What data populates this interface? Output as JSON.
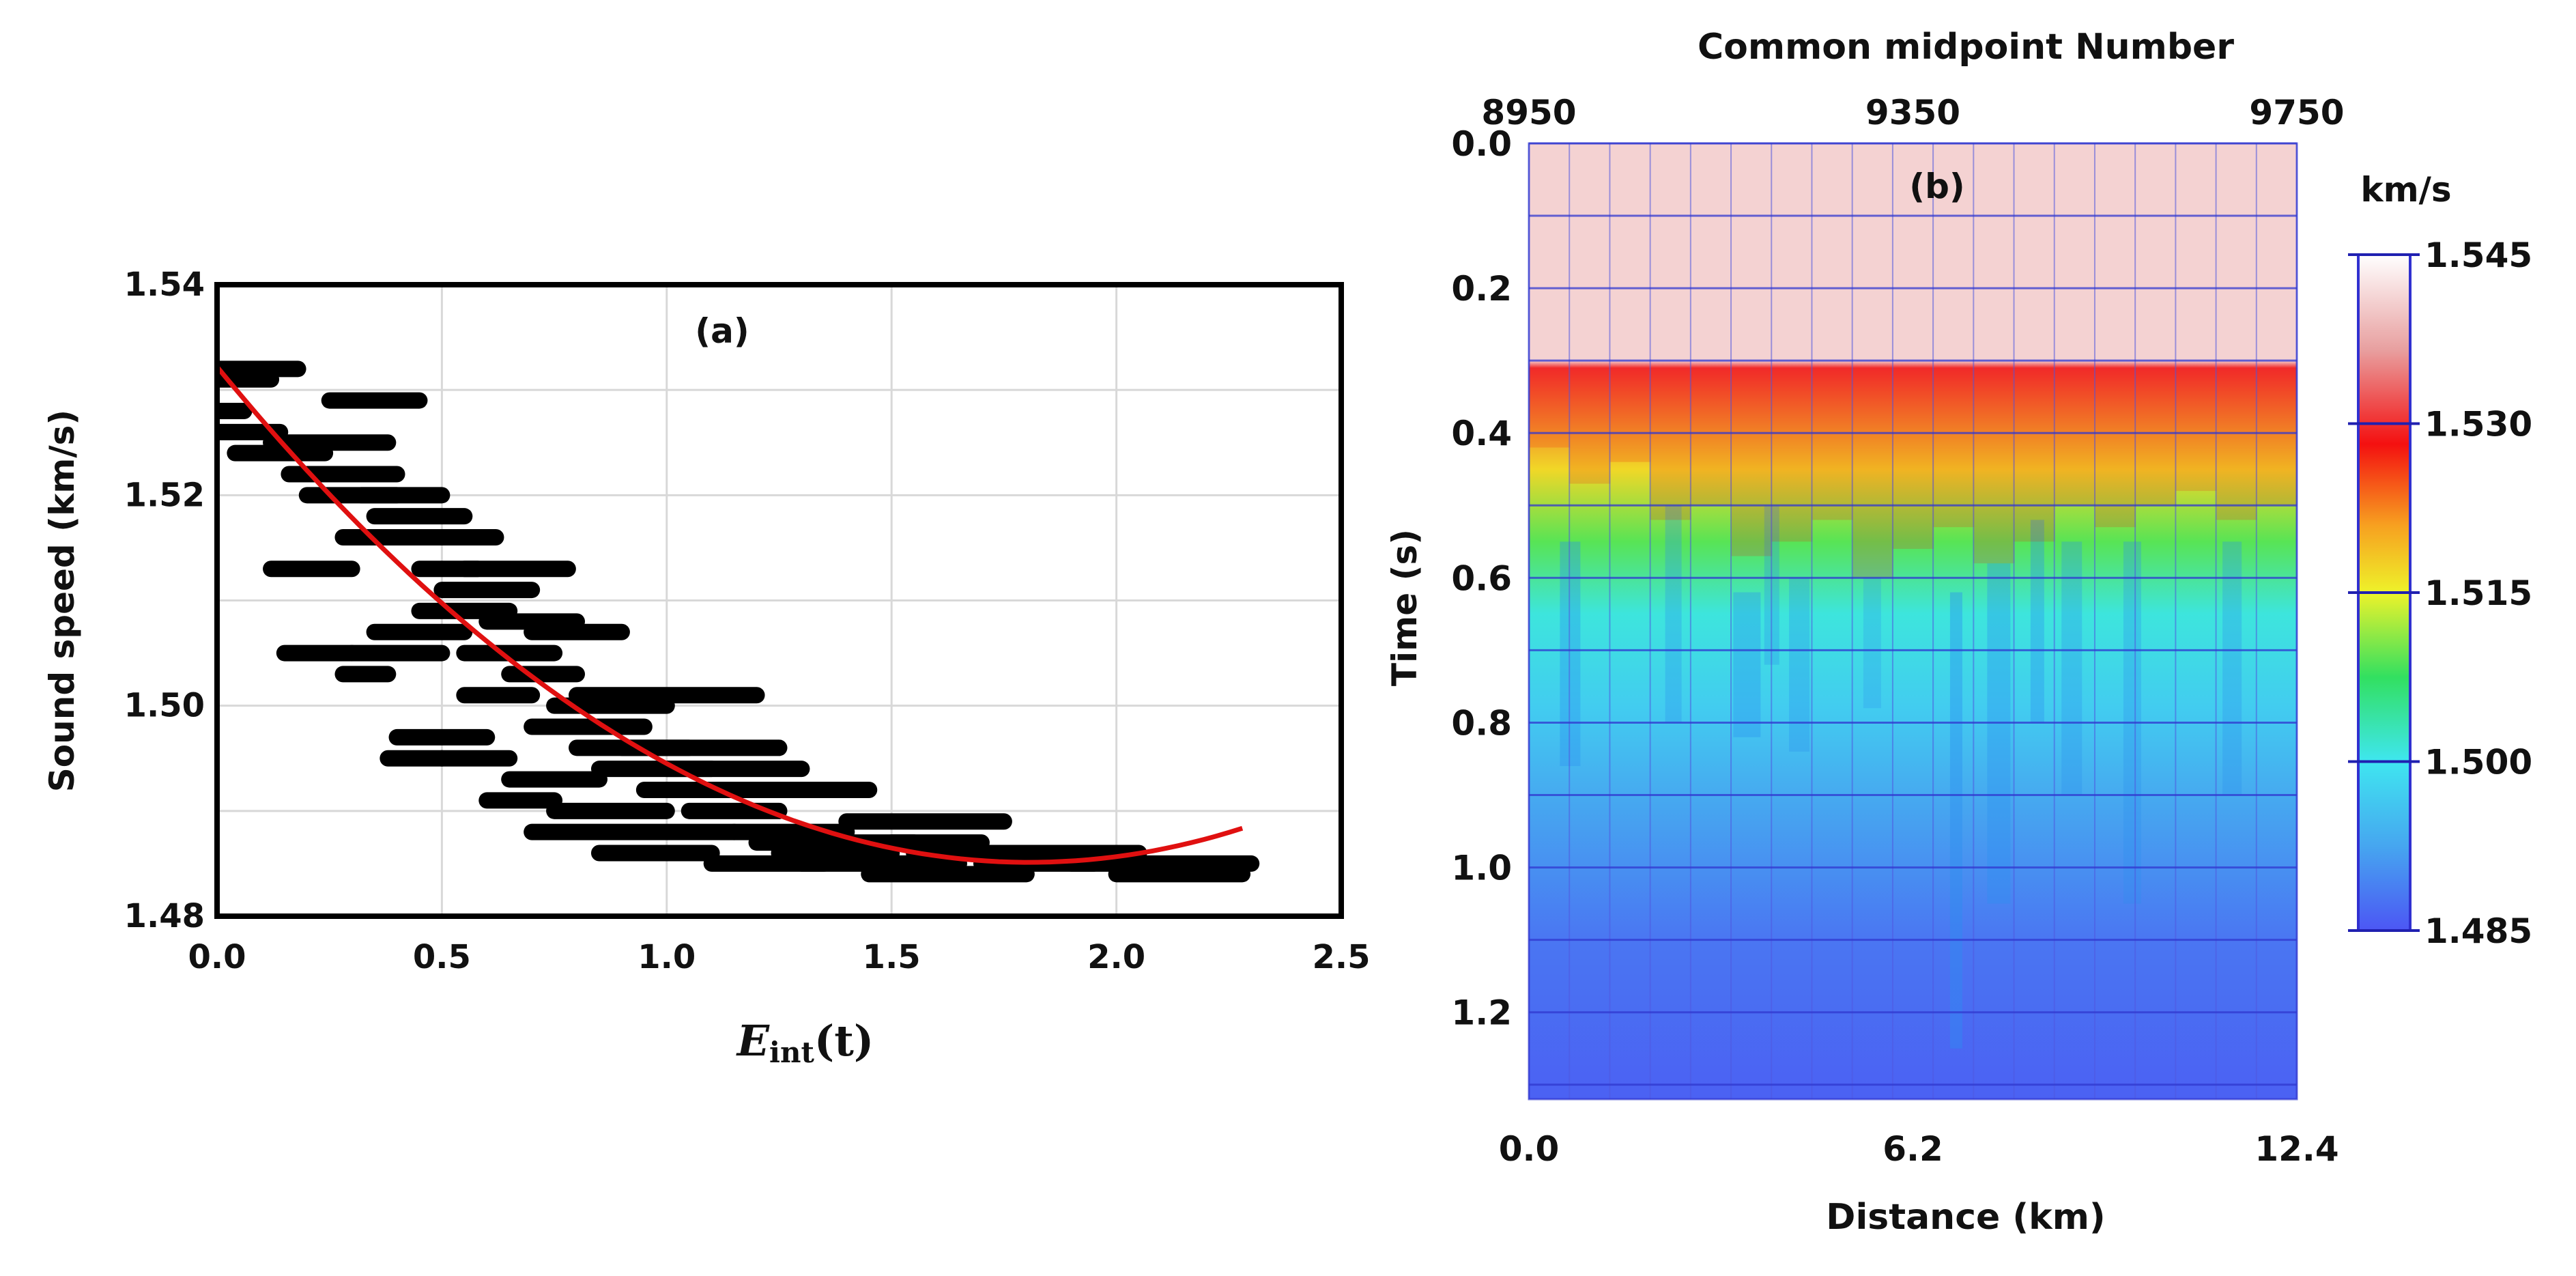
{
  "chart_data": [
    {
      "type": "scatter",
      "panel_label": "(a)",
      "xlabel_base": "E",
      "xlabel_sub": "int",
      "xlabel_arg": "(t)",
      "ylabel": "Sound speed (km/s)",
      "xlim": [
        0,
        2.5
      ],
      "ylim": [
        1.48,
        1.54
      ],
      "xticks": [
        "0.0",
        "0.5",
        "1.0",
        "1.5",
        "2.0",
        "2.5"
      ],
      "yticks": [
        "1.48",
        "1.50",
        "1.52",
        "1.54"
      ],
      "grid": true,
      "segments": [
        [
          0.0,
          0.18,
          1.532
        ],
        [
          0.0,
          0.12,
          1.531
        ],
        [
          0.0,
          0.06,
          1.528
        ],
        [
          0.0,
          0.14,
          1.526
        ],
        [
          0.12,
          0.38,
          1.525
        ],
        [
          0.04,
          0.24,
          1.524
        ],
        [
          0.16,
          0.4,
          1.522
        ],
        [
          0.25,
          0.45,
          1.529
        ],
        [
          0.2,
          0.4,
          1.52
        ],
        [
          0.12,
          0.3,
          1.513
        ],
        [
          0.32,
          0.5,
          1.52
        ],
        [
          0.35,
          0.55,
          1.518
        ],
        [
          0.28,
          0.48,
          1.516
        ],
        [
          0.4,
          0.62,
          1.516
        ],
        [
          0.45,
          0.58,
          1.513
        ],
        [
          0.5,
          0.7,
          1.511
        ],
        [
          0.55,
          0.78,
          1.513
        ],
        [
          0.15,
          0.3,
          1.505
        ],
        [
          0.3,
          0.5,
          1.505
        ],
        [
          0.28,
          0.38,
          1.503
        ],
        [
          0.35,
          0.55,
          1.507
        ],
        [
          0.6,
          0.8,
          1.508
        ],
        [
          0.45,
          0.65,
          1.509
        ],
        [
          0.55,
          0.75,
          1.505
        ],
        [
          0.7,
          0.9,
          1.507
        ],
        [
          0.65,
          0.8,
          1.503
        ],
        [
          0.55,
          0.7,
          1.501
        ],
        [
          0.75,
          1.0,
          1.5
        ],
        [
          0.8,
          1.2,
          1.501
        ],
        [
          0.7,
          0.95,
          1.498
        ],
        [
          0.4,
          0.6,
          1.497
        ],
        [
          0.38,
          0.5,
          1.495
        ],
        [
          0.5,
          0.65,
          1.495
        ],
        [
          0.8,
          1.05,
          1.496
        ],
        [
          0.9,
          1.25,
          1.496
        ],
        [
          0.85,
          1.1,
          1.494
        ],
        [
          1.0,
          1.3,
          1.494
        ],
        [
          0.65,
          0.85,
          1.493
        ],
        [
          0.6,
          0.75,
          1.491
        ],
        [
          0.95,
          1.15,
          1.492
        ],
        [
          1.1,
          1.45,
          1.492
        ],
        [
          0.75,
          1.0,
          1.49
        ],
        [
          1.05,
          1.25,
          1.49
        ],
        [
          0.7,
          1.15,
          1.488
        ],
        [
          1.15,
          1.4,
          1.488
        ],
        [
          0.85,
          1.1,
          1.486
        ],
        [
          1.2,
          1.55,
          1.487
        ],
        [
          1.4,
          1.75,
          1.489
        ],
        [
          1.5,
          1.7,
          1.487
        ],
        [
          1.1,
          1.35,
          1.485
        ],
        [
          1.3,
          1.65,
          1.485
        ],
        [
          1.55,
          1.85,
          1.486
        ],
        [
          1.45,
          1.8,
          1.484
        ],
        [
          1.8,
          2.05,
          1.486
        ],
        [
          1.9,
          2.3,
          1.485
        ],
        [
          1.7,
          1.95,
          1.485
        ],
        [
          2.0,
          2.28,
          1.484
        ],
        [
          1.25,
          1.5,
          1.486
        ]
      ],
      "fit_coeffs": [
        1.5322,
        -0.05213,
        0.01443
      ],
      "fit_range": [
        0.0,
        2.28
      ],
      "colors": {
        "points": "#000000",
        "fit": "#e01010"
      }
    },
    {
      "type": "heatmap",
      "panel_label": "(b)",
      "title": "Common midpoint Number",
      "xlabel": "Distance (km)",
      "ylabel": "Time (s)",
      "top_ticks": [
        "8950",
        "9350",
        "9750"
      ],
      "top_tick_values": [
        0.0,
        6.2,
        12.4
      ],
      "xticks": [
        "0.0",
        "6.2",
        "12.4"
      ],
      "xtick_values": [
        0.0,
        6.2,
        12.4
      ],
      "yticks": [
        "0.0",
        "0.2",
        "0.4",
        "0.6",
        "0.8",
        "1.0",
        "1.2"
      ],
      "xlim": [
        0,
        12.4
      ],
      "ylim": [
        0,
        1.32
      ],
      "colorbar": {
        "unit": "km/s",
        "ticks": [
          "1.545",
          "1.530",
          "1.515",
          "1.500",
          "1.485"
        ],
        "range": [
          1.485,
          1.545
        ]
      },
      "profile_times": [
        0.0,
        0.3,
        0.31,
        0.45,
        0.55,
        0.65,
        0.78,
        0.9,
        1.1,
        1.32
      ],
      "profile_values": [
        1.541,
        1.541,
        1.53,
        1.517,
        1.509,
        1.501,
        1.497,
        1.493,
        1.488,
        1.486
      ],
      "colors": {
        "stops": [
          "#4c56f4",
          "#46a6f0",
          "#3fe6f0",
          "#32e060",
          "#eef22a",
          "#f7a020",
          "#f41010",
          "#e8a0a0",
          "#ffffff"
        ]
      }
    }
  ]
}
